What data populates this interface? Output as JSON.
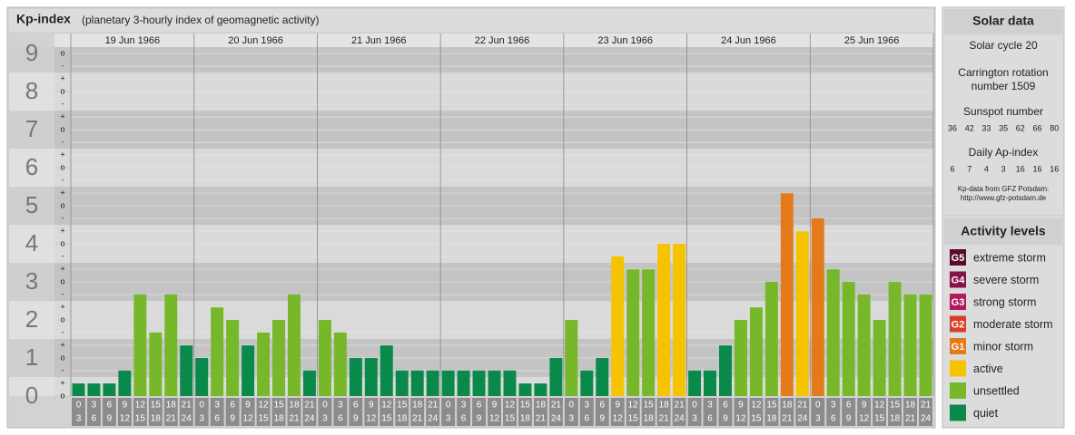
{
  "chart_data": {
    "type": "bar",
    "title": "Kp-index",
    "subtitle": "(planetary 3-hourly index of geomagnetic activity)",
    "days": [
      "19 Jun 1966",
      "20 Jun 1966",
      "21 Jun 1966",
      "22 Jun 1966",
      "23 Jun 1966",
      "24 Jun 1966",
      "25 Jun 1966"
    ],
    "hour_labels": [
      [
        "0",
        "3"
      ],
      [
        "3",
        "6"
      ],
      [
        "6",
        "9"
      ],
      [
        "9",
        "12"
      ],
      [
        "12",
        "15"
      ],
      [
        "15",
        "18"
      ],
      [
        "18",
        "21"
      ],
      [
        "21",
        "24"
      ]
    ],
    "tick_marks": [
      "-",
      "o",
      "+"
    ],
    "ylim": [
      0,
      9.17
    ],
    "yticks": [
      0,
      1,
      2,
      3,
      4,
      5,
      6,
      7,
      8,
      9
    ],
    "values": [
      0.33,
      0.33,
      0.33,
      0.67,
      2.67,
      1.67,
      2.67,
      1.33,
      1.0,
      2.33,
      2.0,
      1.33,
      1.67,
      2.0,
      2.67,
      0.67,
      2.0,
      1.67,
      1.0,
      1.0,
      1.33,
      0.67,
      0.67,
      0.67,
      0.67,
      0.67,
      0.67,
      0.67,
      0.67,
      0.33,
      0.33,
      1.0,
      2.0,
      0.67,
      1.0,
      3.67,
      3.33,
      3.33,
      4.0,
      4.0,
      0.67,
      0.67,
      1.33,
      2.0,
      2.33,
      3.0,
      5.33,
      4.33,
      4.67,
      3.33,
      3.0,
      2.67,
      2.0,
      3.0,
      2.67,
      2.67
    ],
    "colors": [
      "#0a8a4a",
      "#0a8a4a",
      "#0a8a4a",
      "#0a8a4a",
      "#76b82a",
      "#76b82a",
      "#76b82a",
      "#0a8a4a",
      "#0a8a4a",
      "#76b82a",
      "#76b82a",
      "#0a8a4a",
      "#76b82a",
      "#76b82a",
      "#76b82a",
      "#0a8a4a",
      "#76b82a",
      "#76b82a",
      "#0a8a4a",
      "#0a8a4a",
      "#0a8a4a",
      "#0a8a4a",
      "#0a8a4a",
      "#0a8a4a",
      "#0a8a4a",
      "#0a8a4a",
      "#0a8a4a",
      "#0a8a4a",
      "#0a8a4a",
      "#0a8a4a",
      "#0a8a4a",
      "#0a8a4a",
      "#76b82a",
      "#0a8a4a",
      "#0a8a4a",
      "#f6c300",
      "#76b82a",
      "#76b82a",
      "#f6c300",
      "#f6c300",
      "#0a8a4a",
      "#0a8a4a",
      "#0a8a4a",
      "#76b82a",
      "#76b82a",
      "#76b82a",
      "#e47a1a",
      "#f6c300",
      "#e47a1a",
      "#76b82a",
      "#76b82a",
      "#76b82a",
      "#76b82a",
      "#76b82a",
      "#76b82a",
      "#76b82a"
    ]
  },
  "solar_data": {
    "title": "Solar data",
    "cycle": "Solar cycle 20",
    "rotation": [
      "Carrington rotation",
      "number 1509"
    ],
    "sunspot_title": "Sunspot number",
    "sunspot": [
      36,
      42,
      33,
      35,
      62,
      66,
      80
    ],
    "ap_title": "Daily Ap-index",
    "ap": [
      6,
      7,
      4,
      3,
      16,
      16,
      16
    ],
    "source": [
      "Kp-data from GFZ Potsdam:",
      "http://www.gfz-potsdam.de"
    ]
  },
  "activity_levels": {
    "title": "Activity levels",
    "items": [
      {
        "code": "G5",
        "label": "extreme storm",
        "color": "#5a0a2e"
      },
      {
        "code": "G4",
        "label": "severe storm",
        "color": "#86124a"
      },
      {
        "code": "G3",
        "label": "strong storm",
        "color": "#b3195e"
      },
      {
        "code": "G2",
        "label": "moderate storm",
        "color": "#d6402a"
      },
      {
        "code": "G1",
        "label": "minor storm",
        "color": "#e47a1a"
      },
      {
        "label": "active",
        "color": "#f6c300"
      },
      {
        "label": "unsettled",
        "color": "#76b82a"
      },
      {
        "label": "quiet",
        "color": "#0a8a4a"
      }
    ]
  }
}
